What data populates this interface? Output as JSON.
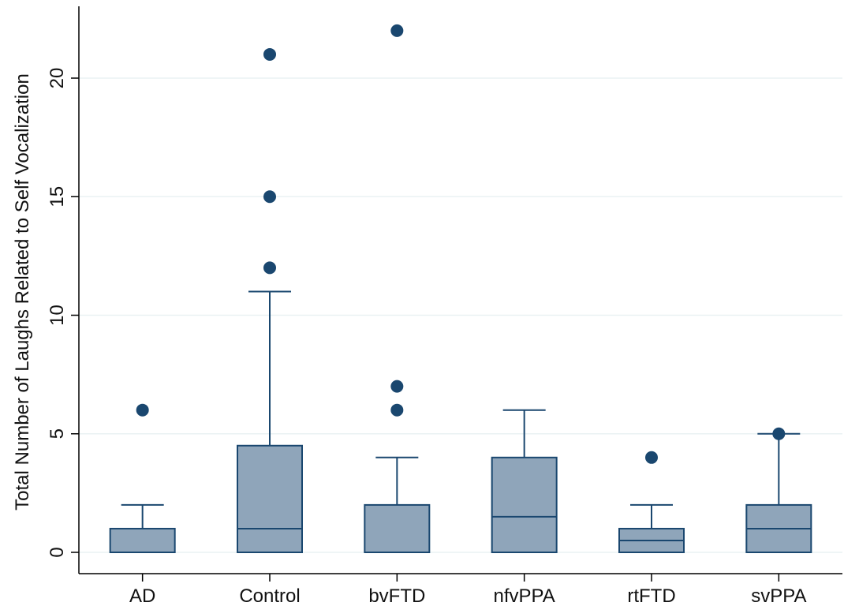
{
  "chart_data": {
    "type": "box",
    "title": "",
    "xlabel": "",
    "ylabel": "Total Number of Laughs Related to Self Vocalization",
    "ylim": [
      -0.9,
      23.0
    ],
    "yticks": [
      0,
      5,
      10,
      15,
      20
    ],
    "ytick_labels": [
      "0",
      "5",
      "10",
      "15",
      "20"
    ],
    "grid": true,
    "categories": [
      "AD",
      "Control",
      "bvFTD",
      "nfvPPA",
      "rtFTD",
      "svPPA"
    ],
    "boxes": [
      {
        "category": "AD",
        "whisker_low": 0,
        "q1": 0,
        "median": 0,
        "q3": 1,
        "whisker_high": 2,
        "outliers": [
          6
        ]
      },
      {
        "category": "Control",
        "whisker_low": 0,
        "q1": 0,
        "median": 1,
        "q3": 4.5,
        "whisker_high": 11,
        "outliers": [
          12,
          15,
          21
        ]
      },
      {
        "category": "bvFTD",
        "whisker_low": 0,
        "q1": 0,
        "median": 0,
        "q3": 2,
        "whisker_high": 4,
        "outliers": [
          6,
          7,
          22
        ]
      },
      {
        "category": "nfvPPA",
        "whisker_low": 0,
        "q1": 0,
        "median": 1.5,
        "q3": 4,
        "whisker_high": 6,
        "outliers": []
      },
      {
        "category": "rtFTD",
        "whisker_low": 0,
        "q1": 0,
        "median": 0.5,
        "q3": 1,
        "whisker_high": 2,
        "outliers": [
          4
        ]
      },
      {
        "category": "svPPA",
        "whisker_low": 0,
        "q1": 0,
        "median": 1,
        "q3": 2,
        "whisker_high": 5,
        "outliers": [
          5
        ]
      }
    ],
    "colors": {
      "box_fill": "#8fa5ba",
      "box_edge": "#1a476f",
      "outlier": "#1a476f",
      "grid": "#eaf2f3",
      "axis": "#000000"
    }
  }
}
